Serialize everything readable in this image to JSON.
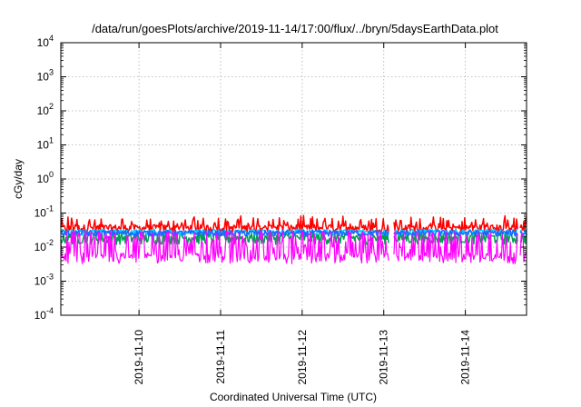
{
  "chart_data": {
    "type": "line",
    "title": "/data/run/goesPlots/archive/2019-11-14/17:00/flux/../bryn/5daysEarthData.plot",
    "xlabel": "Coordinated Universal Time (UTC)",
    "ylabel": "cGy/day",
    "y_scale": "log",
    "ylim": [
      0.0001,
      10000
    ],
    "y_ticks": [
      {
        "value": 0.0001,
        "base": "10",
        "exp": "-4"
      },
      {
        "value": 0.001,
        "base": "10",
        "exp": "-3"
      },
      {
        "value": 0.01,
        "base": "10",
        "exp": "-2"
      },
      {
        "value": 0.1,
        "base": "10",
        "exp": "-1"
      },
      {
        "value": 1,
        "base": "10",
        "exp": "0"
      },
      {
        "value": 10,
        "base": "10",
        "exp": "1"
      },
      {
        "value": 100,
        "base": "10",
        "exp": "2"
      },
      {
        "value": 1000,
        "base": "10",
        "exp": "3"
      },
      {
        "value": 10000,
        "base": "10",
        "exp": "4"
      }
    ],
    "xlim": [
      "2019-11-09T01:00",
      "2019-11-14T18:00"
    ],
    "x_ticks": [
      "2019-11-10",
      "2019-11-11",
      "2019-11-12",
      "2019-11-13",
      "2019-11-14"
    ],
    "grid": true,
    "colors": [
      "#ff0000",
      "#00a050",
      "#00c8ff",
      "#1e64ff",
      "#ff00ff"
    ],
    "series": [
      {
        "color": "#ff0000",
        "baseline": 0.035,
        "variation": "noisy 0.025-0.07"
      },
      {
        "color": "#00a050",
        "baseline": 0.02,
        "variation": "noisy 0.01-0.03"
      },
      {
        "color": "#00c8ff",
        "baseline": 0.028,
        "variation": "noisy 0.02-0.04"
      },
      {
        "color": "#1e64ff",
        "baseline": 0.026,
        "variation": "noisy 0.018-0.045"
      },
      {
        "color": "#ff00ff",
        "baseline": 0.005,
        "variation": "spiky 0.003-0.04"
      }
    ],
    "data_gaps": [
      [
        "2019-11-13T01:30",
        "2019-11-13T03:00"
      ],
      [
        "2019-11-14T15:30",
        "2019-11-14T16:00"
      ]
    ]
  }
}
